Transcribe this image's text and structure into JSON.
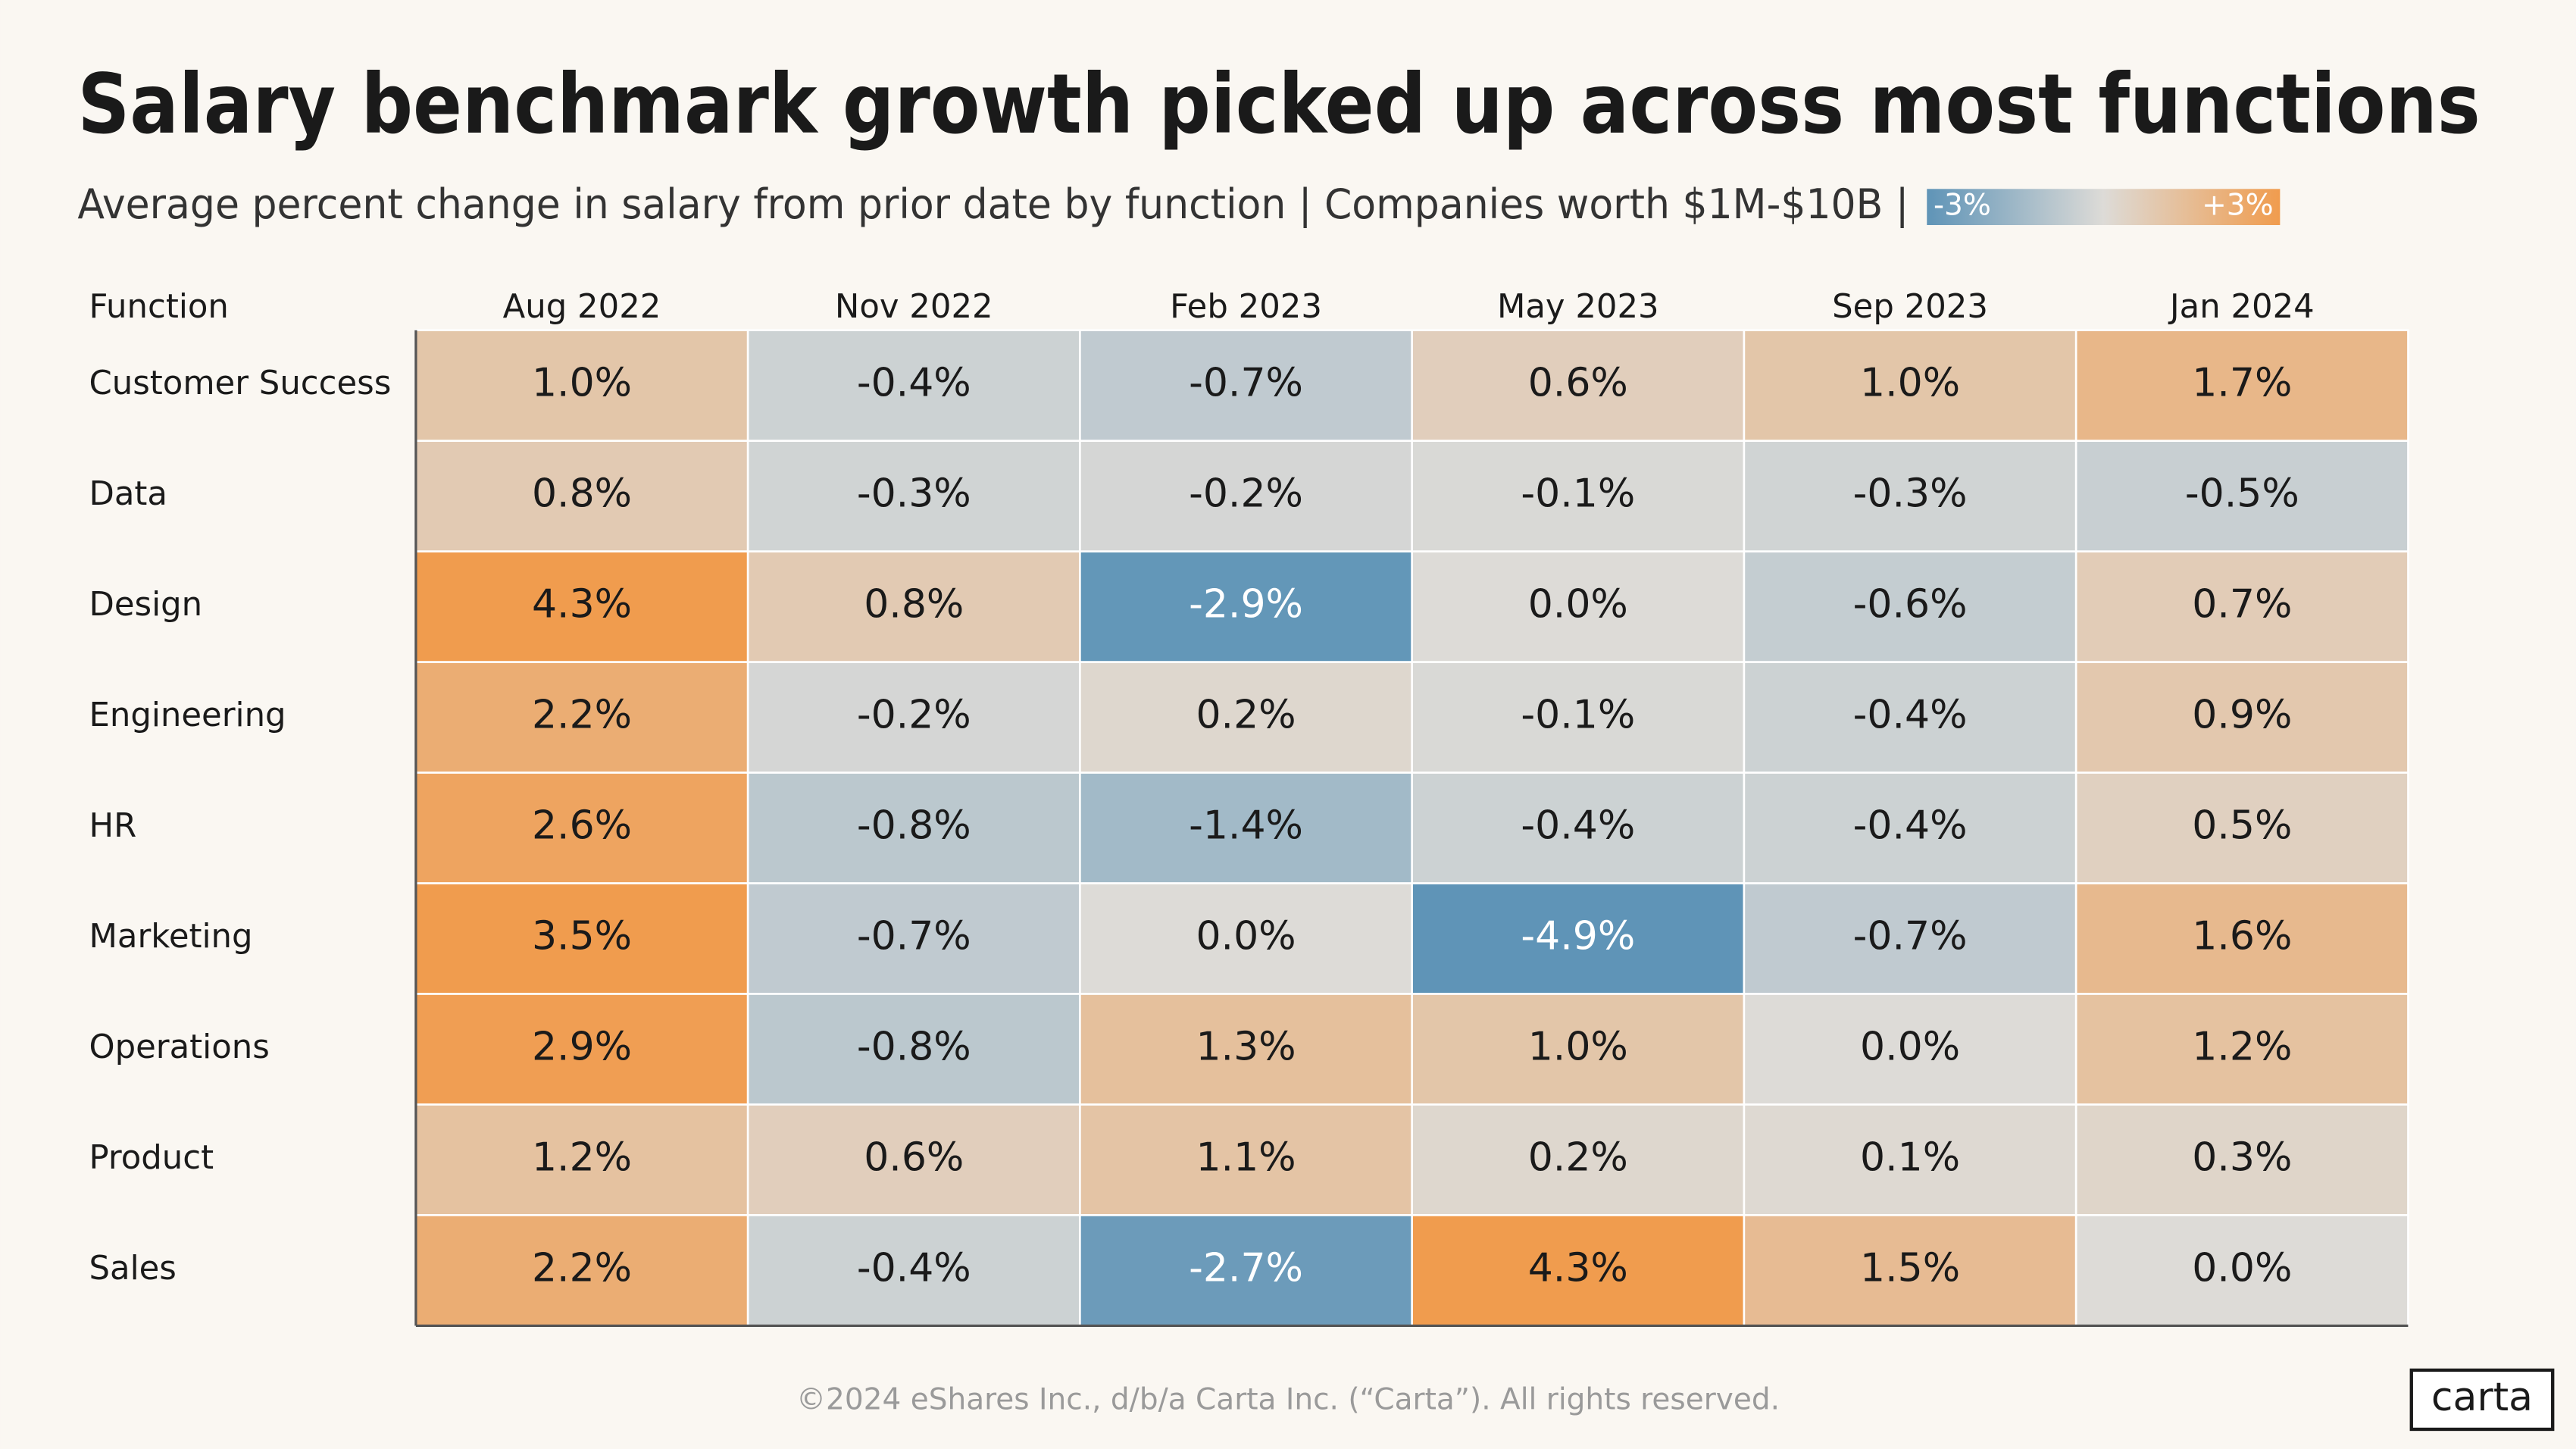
{
  "chart_data": {
    "type": "heatmap",
    "title": "Salary benchmark growth picked up across most functions",
    "subtitle": "Average percent change in salary from prior date by function | Companies worth $1M-$10B |",
    "row_header": "Function",
    "categories": [
      "Customer Success",
      "Data",
      "Design",
      "Engineering",
      "HR",
      "Marketing",
      "Operations",
      "Product",
      "Sales"
    ],
    "series": [
      {
        "name": "Aug 2022",
        "values": [
          1.0,
          0.8,
          4.3,
          2.2,
          2.6,
          3.5,
          2.9,
          1.2,
          2.2
        ],
        "value_labels": [
          "1.0%",
          "0.8%",
          "4.3%",
          "2.2%",
          "2.6%",
          "3.5%",
          "2.9%",
          "1.2%",
          "2.2%"
        ]
      },
      {
        "name": "Nov 2022",
        "values": [
          -0.4,
          -0.3,
          0.8,
          -0.2,
          -0.8,
          -0.7,
          -0.8,
          0.6,
          -0.4
        ],
        "value_labels": [
          "-0.4%",
          "-0.3%",
          "0.8%",
          "-0.2%",
          "-0.8%",
          "-0.7%",
          "-0.8%",
          "0.6%",
          "-0.4%"
        ]
      },
      {
        "name": "Feb 2023",
        "values": [
          -0.7,
          -0.2,
          -2.9,
          0.2,
          -1.4,
          0.0,
          1.3,
          1.1,
          -2.7
        ],
        "value_labels": [
          "-0.7%",
          "-0.2%",
          "-2.9%",
          "0.2%",
          "-1.4%",
          "0.0%",
          "1.3%",
          "1.1%",
          "-2.7%"
        ]
      },
      {
        "name": "May 2023",
        "values": [
          0.6,
          -0.1,
          0.0,
          -0.1,
          -0.4,
          -4.9,
          1.0,
          0.2,
          4.3
        ],
        "value_labels": [
          "0.6%",
          "-0.1%",
          "0.0%",
          "-0.1%",
          "-0.4%",
          "-4.9%",
          "1.0%",
          "0.2%",
          "4.3%"
        ]
      },
      {
        "name": "Sep 2023",
        "values": [
          1.0,
          -0.3,
          -0.6,
          -0.4,
          -0.4,
          -0.7,
          0.0,
          0.1,
          1.5
        ],
        "value_labels": [
          "1.0%",
          "-0.3%",
          "-0.6%",
          "-0.4%",
          "-0.4%",
          "-0.7%",
          "0.0%",
          "0.1%",
          "1.5%"
        ]
      },
      {
        "name": "Jan 2024",
        "values": [
          1.7,
          -0.5,
          0.7,
          0.9,
          0.5,
          1.6,
          1.2,
          0.3,
          0.0
        ],
        "value_labels": [
          "1.7%",
          "-0.5%",
          "0.7%",
          "0.9%",
          "0.5%",
          "1.6%",
          "1.2%",
          "0.3%",
          "0.0%"
        ]
      }
    ],
    "color_scale": {
      "low": "#5b92b6",
      "mid": "#dddbd7",
      "high": "#f19a4a"
    },
    "colorbar_ticks": [
      {
        "value": -3,
        "label": "-3%"
      },
      {
        "value": 3,
        "label": "+3%"
      }
    ]
  },
  "footer": "©2024 eShares Inc., d/b/a Carta Inc. (“Carta”). All rights reserved.",
  "logo": "carta"
}
